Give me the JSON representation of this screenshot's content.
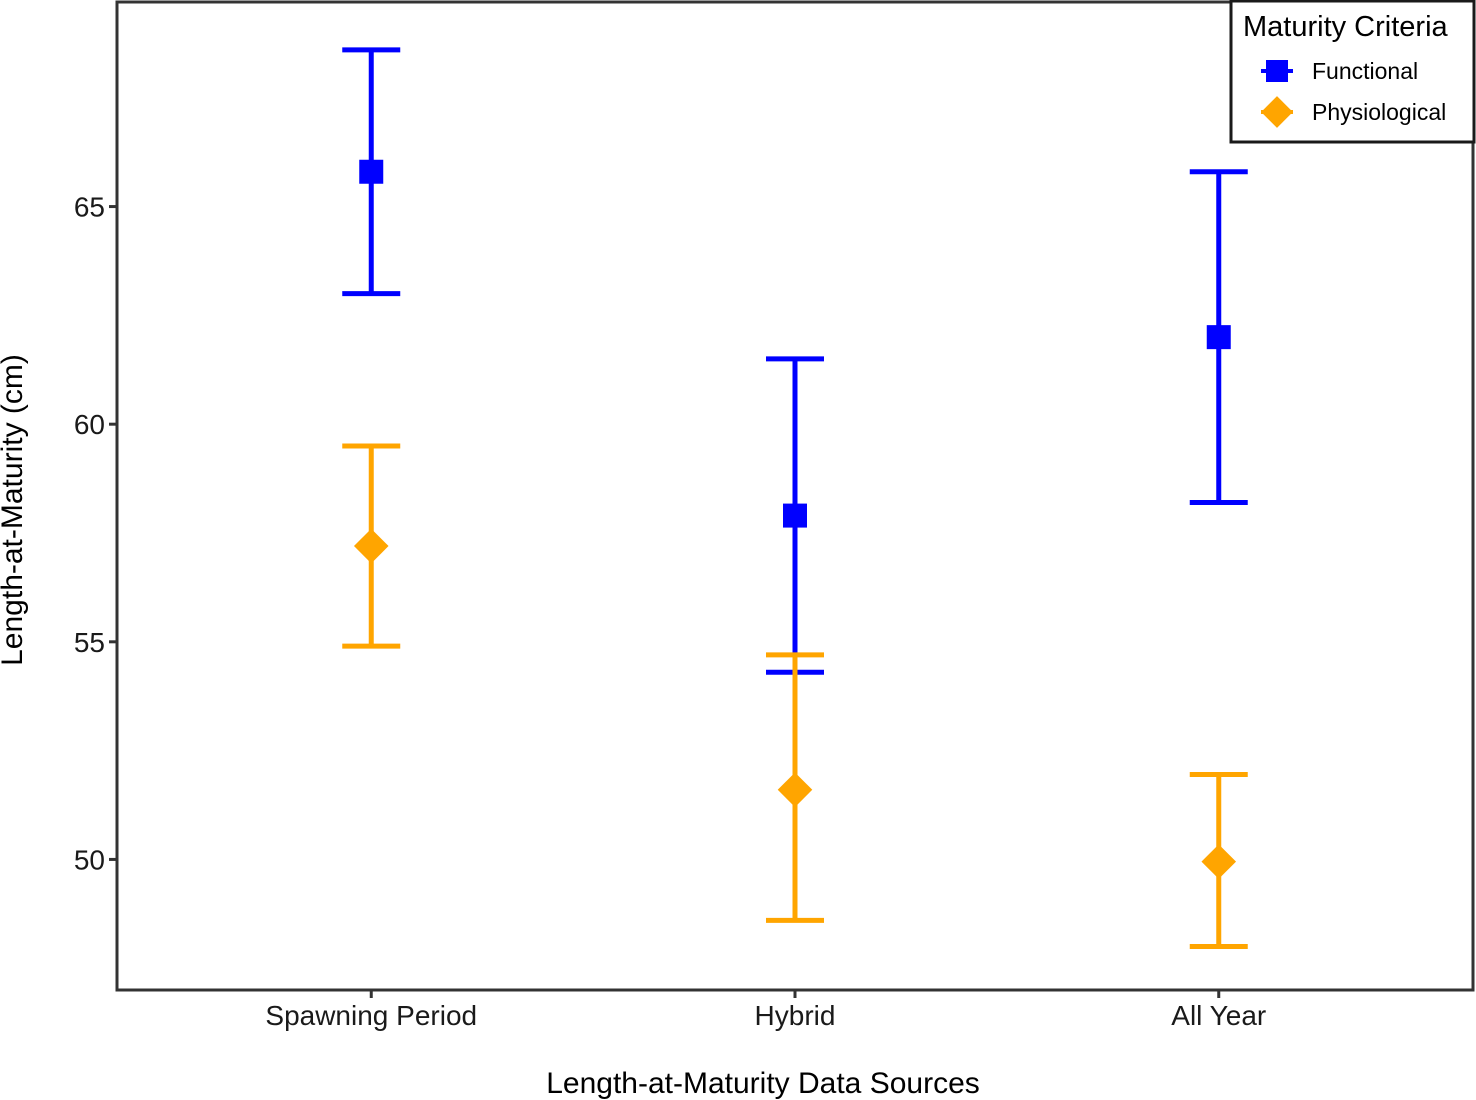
{
  "chart_data": {
    "type": "scatter",
    "title": "",
    "xlabel": "Length-at-Maturity Data Sources",
    "ylabel": "Length-at-Maturity (cm)",
    "categories": [
      "Spawning Period",
      "Hybrid",
      "All Year"
    ],
    "ylim": [
      47,
      69.7
    ],
    "yticks": [
      50,
      55,
      60,
      65
    ],
    "ytick_labels": [
      "50",
      "55",
      "60",
      "65"
    ],
    "grid": false,
    "legend": {
      "title": "Maturity Criteria",
      "placement": "top-right",
      "entries": [
        "Functional",
        "Physiological"
      ]
    },
    "series": [
      {
        "name": "Functional",
        "marker": "square",
        "color": "#0000ff",
        "values": [
          65.8,
          57.9,
          62.0
        ],
        "lower": [
          63.0,
          54.3,
          58.2
        ],
        "upper": [
          68.6,
          61.5,
          65.8
        ]
      },
      {
        "name": "Physiological",
        "marker": "diamond",
        "color": "#ffa500",
        "values": [
          57.2,
          51.6,
          49.95
        ],
        "lower": [
          54.9,
          48.6,
          48.0
        ],
        "upper": [
          59.5,
          54.7,
          51.95
        ]
      }
    ]
  }
}
